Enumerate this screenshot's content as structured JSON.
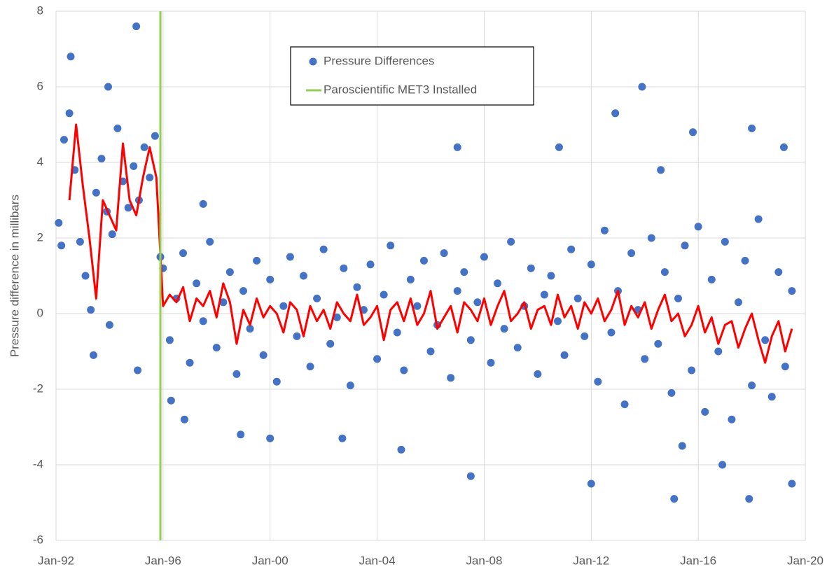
{
  "chart_data": {
    "type": "scatter",
    "y_label": "Pressure difference in millibars",
    "xlim": [
      1992,
      2020
    ],
    "ylim": [
      -6,
      8
    ],
    "xticks": [
      {
        "value": 1992,
        "label": "Jan-92"
      },
      {
        "value": 1996,
        "label": "Jan-96"
      },
      {
        "value": 2000,
        "label": "Jan-00"
      },
      {
        "value": 2004,
        "label": "Jan-04"
      },
      {
        "value": 2008,
        "label": "Jan-08"
      },
      {
        "value": 2012,
        "label": "Jan-12"
      },
      {
        "value": 2016,
        "label": "Jan-16"
      },
      {
        "value": 2020,
        "label": "Jan-20"
      }
    ],
    "yticks": [
      -6,
      -4,
      -2,
      0,
      2,
      4,
      6,
      8
    ],
    "grid": true,
    "series": [
      {
        "name": "Pressure Differences",
        "color": "#4472c4",
        "mode": "markers",
        "x": [
          1992.1,
          1992.3,
          1992.5,
          1992.7,
          1992.9,
          1993.1,
          1993.3,
          1993.5,
          1993.7,
          1993.9,
          1994.1,
          1994.3,
          1994.5,
          1994.7,
          1994.9,
          1995.1,
          1995.3,
          1995.5,
          1995.7,
          1995.9,
          1992.55,
          1993.95,
          1995.0,
          1993.4,
          1995.05,
          1992.2,
          1994.0,
          1996.0,
          1996.25,
          1996.5,
          1996.75,
          1997.0,
          1997.25,
          1997.5,
          1997.75,
          1998.0,
          1998.25,
          1998.5,
          1998.75,
          1999.0,
          1999.25,
          1999.5,
          1999.75,
          2000.0,
          2000.25,
          2000.5,
          2000.75,
          2001.0,
          2001.25,
          2001.5,
          2001.75,
          2002.0,
          2002.25,
          2002.5,
          2002.75,
          2003.0,
          2003.25,
          2003.5,
          2003.75,
          2004.0,
          2004.25,
          2004.5,
          2004.75,
          2005.0,
          2005.25,
          2005.5,
          2005.75,
          2006.0,
          2006.25,
          2006.5,
          2006.75,
          2007.0,
          2007.25,
          2007.5,
          2007.75,
          2008.0,
          2008.25,
          2008.5,
          2008.75,
          2009.0,
          2009.25,
          2009.5,
          2009.75,
          2010.0,
          2010.25,
          2010.5,
          2010.75,
          2011.0,
          2011.25,
          2011.5,
          2011.75,
          2012.0,
          2012.25,
          2012.5,
          2012.75,
          2013.0,
          2013.25,
          2013.5,
          2013.75,
          2014.0,
          2014.25,
          2014.5,
          2014.75,
          2015.0,
          2015.25,
          2015.5,
          2015.75,
          2016.0,
          2016.25,
          2016.5,
          2016.75,
          2017.0,
          2017.25,
          2017.5,
          2017.75,
          2018.0,
          2018.25,
          2018.5,
          2018.75,
          2019.0,
          2019.25,
          2019.5,
          1996.3,
          1996.8,
          1998.9,
          2000.0,
          2002.7,
          2004.9,
          2007.5,
          2007.0,
          2010.8,
          2012.9,
          2013.9,
          2012.0,
          2015.1,
          2017.9,
          2015.8,
          2018.0,
          2019.2,
          2019.5,
          2016.9,
          2015.4,
          2014.6,
          1997.5
        ],
        "values": [
          2.4,
          4.6,
          5.3,
          3.8,
          1.9,
          1.0,
          0.1,
          3.2,
          4.1,
          2.7,
          2.1,
          4.9,
          3.5,
          2.8,
          3.9,
          3.0,
          4.4,
          3.6,
          4.7,
          1.5,
          6.8,
          6.0,
          7.6,
          -1.1,
          -1.5,
          1.8,
          -0.3,
          1.2,
          -0.7,
          0.4,
          1.6,
          -1.3,
          0.8,
          -0.2,
          1.9,
          -0.9,
          0.3,
          1.1,
          -1.6,
          0.6,
          -0.4,
          1.4,
          -1.1,
          0.9,
          -1.8,
          0.2,
          1.5,
          -0.6,
          1.0,
          -1.4,
          0.4,
          1.7,
          -0.8,
          -0.1,
          1.2,
          -1.9,
          0.7,
          0.1,
          1.3,
          -1.2,
          0.5,
          1.8,
          -0.5,
          -1.5,
          0.9,
          0.2,
          1.4,
          -1.0,
          -0.3,
          1.6,
          -1.7,
          0.6,
          1.1,
          -0.7,
          0.3,
          1.5,
          -1.3,
          0.8,
          -0.4,
          1.9,
          -0.9,
          0.2,
          1.2,
          -1.6,
          0.5,
          1.0,
          -0.2,
          -1.1,
          1.7,
          0.4,
          -0.6,
          1.3,
          -1.8,
          2.2,
          -0.5,
          0.6,
          -2.4,
          1.6,
          0.1,
          -1.2,
          2.0,
          -0.8,
          1.1,
          -2.1,
          0.4,
          1.8,
          -1.5,
          2.3,
          -2.6,
          0.9,
          -1.0,
          1.9,
          -2.8,
          0.3,
          1.4,
          -1.9,
          2.5,
          -0.7,
          -2.2,
          1.1,
          -1.4,
          0.6,
          -2.3,
          -2.8,
          -3.2,
          -3.3,
          -3.3,
          -3.6,
          -4.3,
          4.4,
          4.4,
          5.3,
          6.0,
          -4.5,
          -4.9,
          -4.9,
          4.8,
          4.9,
          4.4,
          -4.5,
          -4.0,
          -3.5,
          3.8,
          2.9
        ]
      },
      {
        "color": "#ff0000",
        "mode": "line",
        "x": [
          1992.5,
          1992.75,
          1993.0,
          1993.25,
          1993.5,
          1993.75,
          1994.0,
          1994.25,
          1994.5,
          1994.75,
          1995.0,
          1995.25,
          1995.5,
          1995.75,
          1996.0,
          1996.25,
          1996.5,
          1996.75,
          1997.0,
          1997.25,
          1997.5,
          1997.75,
          1998.0,
          1998.25,
          1998.5,
          1998.75,
          1999.0,
          1999.25,
          1999.5,
          1999.75,
          2000.0,
          2000.25,
          2000.5,
          2000.75,
          2001.0,
          2001.25,
          2001.5,
          2001.75,
          2002.0,
          2002.25,
          2002.5,
          2002.75,
          2003.0,
          2003.25,
          2003.5,
          2003.75,
          2004.0,
          2004.25,
          2004.5,
          2004.75,
          2005.0,
          2005.25,
          2005.5,
          2005.75,
          2006.0,
          2006.25,
          2006.5,
          2006.75,
          2007.0,
          2007.25,
          2007.5,
          2007.75,
          2008.0,
          2008.25,
          2008.5,
          2008.75,
          2009.0,
          2009.25,
          2009.5,
          2009.75,
          2010.0,
          2010.25,
          2010.5,
          2010.75,
          2011.0,
          2011.25,
          2011.5,
          2011.75,
          2012.0,
          2012.25,
          2012.5,
          2012.75,
          2013.0,
          2013.25,
          2013.5,
          2013.75,
          2014.0,
          2014.25,
          2014.5,
          2014.75,
          2015.0,
          2015.25,
          2015.5,
          2015.75,
          2016.0,
          2016.25,
          2016.5,
          2016.75,
          2017.0,
          2017.25,
          2017.5,
          2017.75,
          2018.0,
          2018.25,
          2018.5,
          2018.75,
          2019.0,
          2019.25,
          2019.5
        ],
        "values": [
          3.0,
          5.0,
          3.4,
          2.0,
          0.4,
          3.0,
          2.6,
          2.2,
          4.5,
          3.0,
          2.6,
          3.6,
          4.4,
          3.6,
          0.2,
          0.5,
          0.3,
          0.7,
          -0.2,
          0.4,
          0.2,
          0.6,
          -0.1,
          0.8,
          0.3,
          -0.8,
          0.1,
          -0.3,
          0.4,
          -0.1,
          0.2,
          0.0,
          -0.5,
          0.3,
          0.1,
          -0.6,
          0.2,
          -0.2,
          0.1,
          -0.4,
          0.3,
          0.0,
          -0.2,
          0.5,
          -0.3,
          -0.1,
          0.2,
          -0.7,
          0.1,
          0.3,
          -0.2,
          0.4,
          -0.3,
          0.0,
          0.6,
          -0.4,
          -0.1,
          0.2,
          -0.5,
          0.3,
          0.1,
          -0.2,
          0.4,
          -0.3,
          0.2,
          0.6,
          -0.2,
          0.0,
          0.3,
          -0.4,
          0.1,
          0.2,
          -0.3,
          0.5,
          -0.1,
          0.2,
          -0.4,
          0.3,
          0.0,
          0.4,
          -0.2,
          0.1,
          0.6,
          -0.3,
          0.2,
          -0.1,
          0.3,
          -0.4,
          0.1,
          0.5,
          -0.2,
          0.0,
          -0.6,
          -0.3,
          0.2,
          -0.5,
          -0.1,
          -0.8,
          -0.3,
          -0.2,
          -0.9,
          -0.4,
          0.0,
          -0.7,
          -1.3,
          -0.6,
          -0.2,
          -1.0,
          -0.4
        ]
      },
      {
        "name": "Paroscientific MET3 Installed",
        "color": "#92d050",
        "mode": "line",
        "x": [
          1995.9,
          1995.9
        ],
        "values": [
          -6,
          8
        ]
      }
    ]
  }
}
